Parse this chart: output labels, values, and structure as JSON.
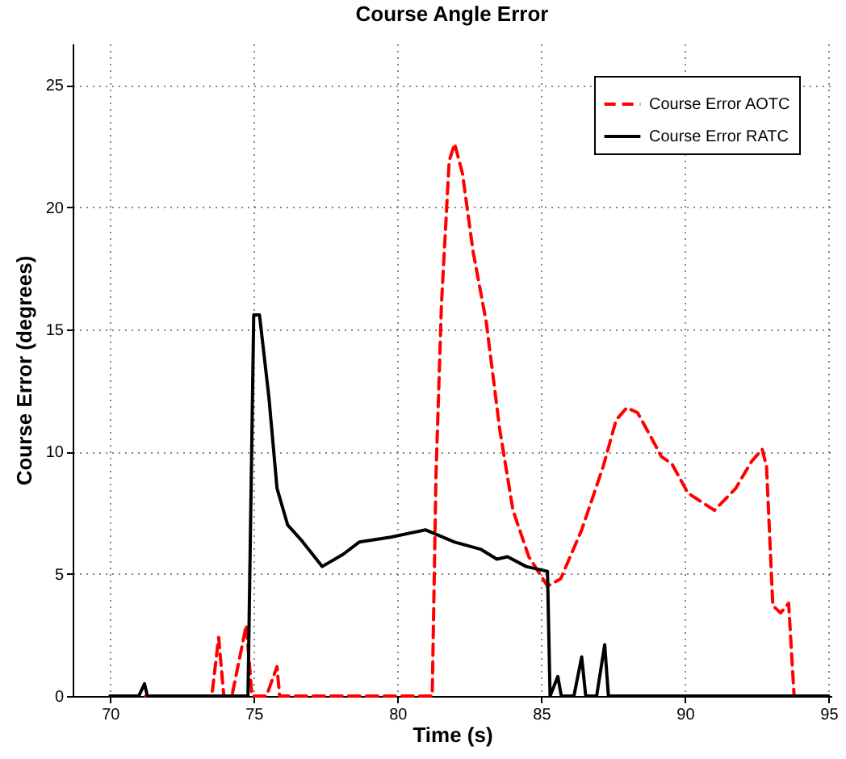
{
  "chart_data": {
    "type": "line",
    "title": "Course Angle Error",
    "xlabel": "Time (s)",
    "ylabel": "Course Error (degrees)",
    "xlim": [
      68.7,
      95.1
    ],
    "ylim": [
      0,
      26.7
    ],
    "xticks": [
      70,
      75,
      80,
      85,
      90,
      95
    ],
    "yticks": [
      0,
      5,
      10,
      15,
      20,
      25
    ],
    "grid": true,
    "legend": "top right",
    "marker": "none",
    "series": [
      {
        "name": "Course Error AOTC",
        "color": "#ff0000",
        "line_style": "dashed",
        "x": [
          70,
          73.54,
          73.78,
          73.96,
          74.24,
          74.74,
          74.94,
          75.44,
          75.81,
          75.9,
          81.21,
          81.34,
          81.53,
          81.8,
          81.99,
          82.26,
          82.63,
          83.09,
          83.56,
          84.02,
          84.57,
          85.22,
          85.68,
          86.41,
          87.16,
          87.61,
          87.98,
          88.35,
          88.82,
          89.18,
          89.55,
          90.11,
          91.03,
          91.77,
          92.32,
          92.69,
          92.84,
          93.06,
          93.33,
          93.61,
          93.8
        ],
        "values": [
          0,
          0,
          2.4,
          0,
          0,
          2.9,
          0,
          0,
          1.2,
          0,
          0,
          9,
          16,
          21.9,
          22.6,
          21.4,
          18.2,
          15.3,
          10.9,
          7.6,
          5.7,
          4.5,
          4.8,
          6.8,
          9.4,
          11.3,
          11.8,
          11.6,
          10.6,
          9.8,
          9.5,
          8.3,
          7.6,
          8.5,
          9.6,
          10.1,
          9.4,
          3.7,
          3.4,
          3.8,
          0
        ]
      },
      {
        "name": "Course Error RATC",
        "color": "#000000",
        "line_style": "solid",
        "x": [
          70,
          71.0,
          71.2,
          71.3,
          74.8,
          75.0,
          75.2,
          75.53,
          75.81,
          76.18,
          76.64,
          77.38,
          78.11,
          78.67,
          79.22,
          79.77,
          80.97,
          81.99,
          82.91,
          83.46,
          83.83,
          84.48,
          85.22,
          85.31,
          85.58,
          85.7,
          86.14,
          86.41,
          86.55,
          86.93,
          87.21,
          87.34,
          95
        ],
        "values": [
          0,
          0,
          0.5,
          0,
          0,
          15.6,
          15.6,
          12.2,
          8.5,
          7,
          6.4,
          5.3,
          5.8,
          6.3,
          6.4,
          6.5,
          6.8,
          6.3,
          6,
          5.6,
          5.7,
          5.3,
          5.1,
          0,
          0.8,
          0,
          0,
          1.6,
          0,
          0,
          2.1,
          0,
          0
        ]
      }
    ]
  }
}
